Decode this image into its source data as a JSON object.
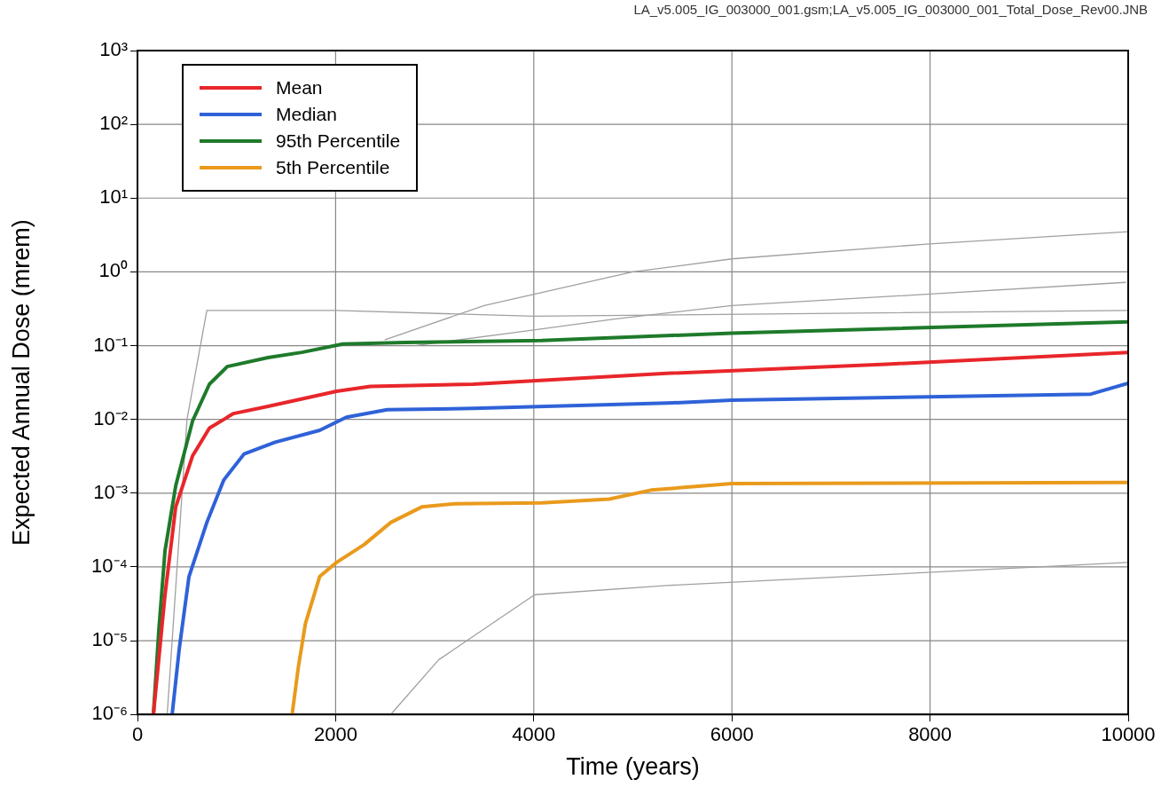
{
  "chart_data": {
    "type": "line",
    "xlabel": "Time (years)",
    "ylabel": "Expected Annual Dose (mrem)",
    "annotations": [
      "LA_v5.005_IG_003000_001.gsm;LA_v5.005_IG_003000_001_Total_Dose_Rev00.JNB"
    ],
    "log": "y",
    "grid": true,
    "legend": "top left",
    "marker": "none",
    "line_style": "solid",
    "xlim": [
      0,
      10000
    ],
    "xticks": [
      0,
      2000,
      4000,
      6000,
      8000,
      10000
    ],
    "ylim": [
      1e-06,
      1000
    ],
    "yticks": [
      {
        "value": 1e-06,
        "label": "10⁻⁶"
      },
      {
        "value": 1e-05,
        "label": "10⁻⁵"
      },
      {
        "value": 0.0001,
        "label": "10⁻⁴"
      },
      {
        "value": 0.001,
        "label": "10⁻³"
      },
      {
        "value": 0.01,
        "label": "10⁻²"
      },
      {
        "value": 0.1,
        "label": "10⁻¹"
      },
      {
        "value": 1,
        "label": "10⁰"
      },
      {
        "value": 10,
        "label": "10¹"
      },
      {
        "value": 100,
        "label": "10²"
      },
      {
        "value": 1000,
        "label": "10³"
      }
    ],
    "series": [
      {
        "color": "#a0a0a0",
        "x": [
          2500,
          3500,
          5000,
          6000,
          8000,
          10000
        ],
        "values": [
          0.12,
          0.35,
          1.0,
          1.5,
          2.4,
          3.5
        ]
      },
      {
        "color": "#a0a0a0",
        "x": [
          2556,
          3040,
          4009,
          5345,
          10000
        ],
        "values": [
          1e-06,
          5.5e-06,
          4.2e-05,
          5.6e-05,
          0.000115
        ]
      },
      {
        "color": "#a0a0a0",
        "x": [
          300,
          500,
          700,
          2000,
          4000,
          10000
        ],
        "values": [
          1e-06,
          0.01,
          0.3,
          0.3,
          0.25,
          0.3
        ]
      },
      {
        "color": "#a0a0a0",
        "x": [
          2800,
          3800,
          4830,
          6000,
          8000,
          9973
        ],
        "values": [
          0.1,
          0.15,
          0.23,
          0.35,
          0.5,
          0.72
        ]
      },
      {
        "name": "Mean",
        "color": "#e8262a",
        "x": [
          161,
          278,
          386,
          556,
          726,
          969,
          1318,
          2009,
          2350,
          3390,
          5345,
          7561,
          10000
        ],
        "values": [
          1e-06,
          4.2e-05,
          0.00065,
          0.0032,
          0.0076,
          0.012,
          0.015,
          0.024,
          0.028,
          0.03,
          0.042,
          0.056,
          0.081
        ]
      },
      {
        "name": "Median",
        "color": "#2f62d8",
        "x": [
          350,
          422,
          520,
          700,
          870,
          1076,
          1390,
          1839,
          2108,
          2520,
          3390,
          5345,
          6000,
          9623,
          10000
        ],
        "values": [
          1e-06,
          7.8e-06,
          7.4e-05,
          0.0004,
          0.0015,
          0.0034,
          0.0049,
          0.0071,
          0.0107,
          0.0135,
          0.0141,
          0.0166,
          0.0182,
          0.022,
          0.031
        ]
      },
      {
        "name": "95th Percentile",
        "color": "#1e7a2a",
        "x": [
          161,
          215,
          278,
          386,
          556,
          726,
          906,
          1318,
          1659,
          2072,
          2700,
          4081,
          6000,
          10000
        ],
        "values": [
          1e-06,
          1.35e-05,
          0.000166,
          0.00126,
          0.0095,
          0.03,
          0.052,
          0.069,
          0.081,
          0.105,
          0.11,
          0.117,
          0.148,
          0.21
        ]
      },
      {
        "name": "5th Percentile",
        "color": "#e99a1c",
        "x": [
          1561,
          1623,
          1695,
          1839,
          2009,
          2287,
          2556,
          2870,
          3211,
          4081,
          4762,
          5184,
          6000,
          10000
        ],
        "values": [
          1e-06,
          4.3e-06,
          1.7e-05,
          7.4e-05,
          0.000115,
          0.0002,
          0.0004,
          0.00065,
          0.00072,
          0.00074,
          0.00083,
          0.0011,
          0.00135,
          0.0014
        ]
      }
    ]
  }
}
